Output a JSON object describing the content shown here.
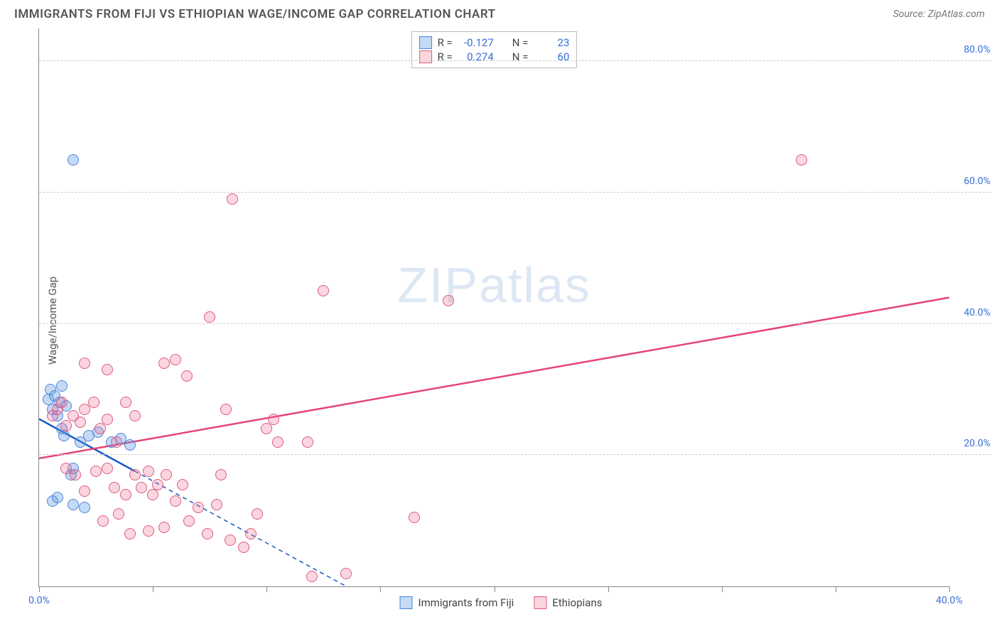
{
  "title": "IMMIGRANTS FROM FIJI VS ETHIOPIAN WAGE/INCOME GAP CORRELATION CHART",
  "source_label": "Source: ",
  "source_name": "ZipAtlas.com",
  "ylabel": "Wage/Income Gap",
  "watermark_a": "ZIP",
  "watermark_b": "atlas",
  "watermark_color": "rgba(120,160,210,0.25)",
  "chart": {
    "type": "scatter-with-trendlines",
    "xlim": [
      0,
      40
    ],
    "ylim": [
      0,
      85
    ],
    "x_ticks": [
      0,
      5,
      10,
      15,
      20,
      25,
      30,
      35,
      40
    ],
    "x_tick_labels": {
      "0": "0.0%",
      "40": "40.0%"
    },
    "y_ticks": [
      20,
      40,
      60,
      80
    ],
    "y_tick_labels": [
      "20.0%",
      "40.0%",
      "60.0%",
      "80.0%"
    ],
    "x_label_color": "#3a6fd8",
    "y_label_color": "#3a6fd8",
    "grid_color": "#cccccc",
    "background": "#ffffff",
    "marker_radius": 8,
    "marker_border_width": 1.2,
    "series": [
      {
        "name": "Immigrants from Fiji",
        "fill": "rgba(90,150,230,0.35)",
        "stroke": "#4a86d8",
        "trend_color": "#1958c4",
        "trend_width": 2.5,
        "trend_dash_after_x": 4.2,
        "R": "-0.127",
        "N": "23",
        "trend": {
          "x1": 0,
          "y1": 25.5,
          "x2": 13.5,
          "y2": 0
        },
        "points": [
          [
            0.4,
            28.5
          ],
          [
            0.5,
            30
          ],
          [
            0.6,
            27
          ],
          [
            0.7,
            29
          ],
          [
            0.8,
            26
          ],
          [
            0.9,
            28
          ],
          [
            1.0,
            30.5
          ],
          [
            1.0,
            24
          ],
          [
            1.1,
            23
          ],
          [
            1.2,
            27.5
          ],
          [
            0.6,
            13
          ],
          [
            0.8,
            13.5
          ],
          [
            1.4,
            17
          ],
          [
            1.5,
            12.5
          ],
          [
            2.0,
            12
          ],
          [
            1.8,
            22
          ],
          [
            2.2,
            23
          ],
          [
            2.6,
            23.5
          ],
          [
            3.2,
            22
          ],
          [
            3.6,
            22.5
          ],
          [
            4.0,
            21.5
          ],
          [
            1.5,
            65
          ],
          [
            1.5,
            18
          ]
        ]
      },
      {
        "name": "Ethiopians",
        "fill": "rgba(240,120,150,0.30)",
        "stroke": "#e05a85",
        "trend_color": "#e5447a",
        "trend_width": 2.5,
        "trend_dash_after_x": 40,
        "R": "0.274",
        "N": "60",
        "trend": {
          "x1": 0,
          "y1": 19.5,
          "x2": 40,
          "y2": 44
        },
        "points": [
          [
            0.6,
            26
          ],
          [
            0.8,
            27
          ],
          [
            1.0,
            28
          ],
          [
            1.2,
            24.5
          ],
          [
            1.5,
            26
          ],
          [
            1.8,
            25
          ],
          [
            2.0,
            27
          ],
          [
            2.4,
            28
          ],
          [
            2.7,
            24
          ],
          [
            3.0,
            25.5
          ],
          [
            3.4,
            22
          ],
          [
            3.8,
            28
          ],
          [
            4.2,
            26
          ],
          [
            2.0,
            34
          ],
          [
            3.0,
            33
          ],
          [
            5.5,
            34
          ],
          [
            6.0,
            34.5
          ],
          [
            6.5,
            32
          ],
          [
            7.5,
            41
          ],
          [
            8.5,
            59
          ],
          [
            12.5,
            45
          ],
          [
            18.0,
            43.5
          ],
          [
            33.5,
            65
          ],
          [
            1.2,
            18
          ],
          [
            1.6,
            17
          ],
          [
            2.0,
            14.5
          ],
          [
            2.5,
            17.5
          ],
          [
            3.0,
            18
          ],
          [
            3.3,
            15
          ],
          [
            3.8,
            14
          ],
          [
            4.2,
            17
          ],
          [
            4.5,
            15
          ],
          [
            4.8,
            17.5
          ],
          [
            5.0,
            14
          ],
          [
            5.2,
            15.5
          ],
          [
            5.6,
            17
          ],
          [
            6.0,
            13
          ],
          [
            6.3,
            15.5
          ],
          [
            6.6,
            10
          ],
          [
            7.0,
            12
          ],
          [
            7.4,
            8
          ],
          [
            7.8,
            12.5
          ],
          [
            8.4,
            7
          ],
          [
            9.0,
            6
          ],
          [
            9.3,
            8
          ],
          [
            9.6,
            11
          ],
          [
            8.0,
            17
          ],
          [
            10.0,
            24
          ],
          [
            10.3,
            25.5
          ],
          [
            10.5,
            22
          ],
          [
            11.8,
            22
          ],
          [
            8.2,
            27
          ],
          [
            12.0,
            1.5
          ],
          [
            13.5,
            2
          ],
          [
            16.5,
            10.5
          ],
          [
            4.0,
            8
          ],
          [
            4.8,
            8.5
          ],
          [
            5.5,
            9
          ],
          [
            2.8,
            10
          ],
          [
            3.5,
            11
          ]
        ]
      }
    ]
  },
  "stats_box": {
    "R_label": "R =",
    "N_label": "N =",
    "value_color": "#3a6fd8"
  },
  "legend": {
    "items": [
      "Immigrants from Fiji",
      "Ethiopians"
    ]
  }
}
